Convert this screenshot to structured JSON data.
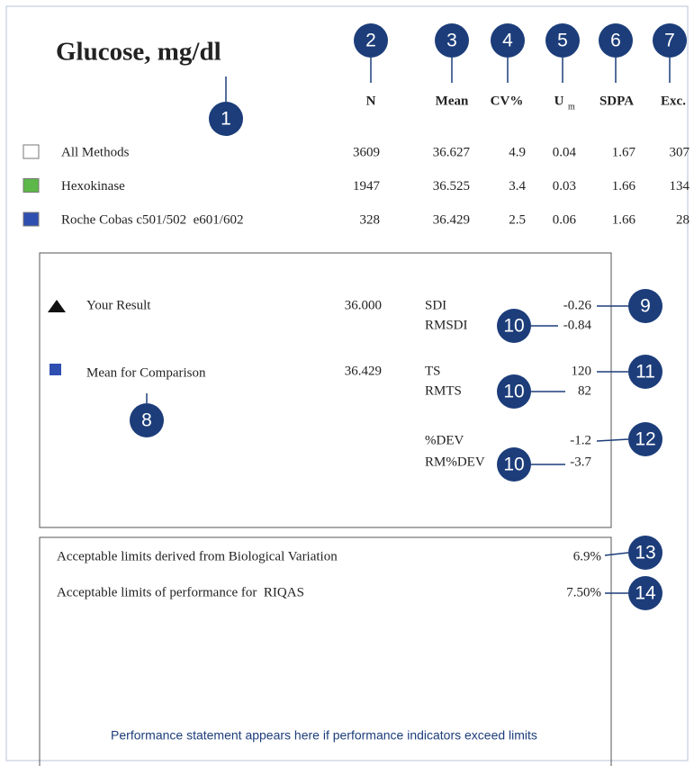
{
  "title": "Glucose, mg/dl",
  "columns": [
    "N",
    "Mean",
    "CV%",
    {
      "text": "U",
      "sub": "m"
    },
    "SDPA",
    "Exc."
  ],
  "rows": [
    {
      "name": "All Methods",
      "values": [
        "3609",
        "36.627",
        "4.9",
        "0.04",
        "1.67",
        "307"
      ]
    },
    {
      "name": "Hexokinase",
      "values": [
        "1947",
        "36.525",
        "3.4",
        "0.03",
        "1.66",
        "134"
      ]
    },
    {
      "name": "Roche Cobas c501/502  e601/602",
      "values": [
        "328",
        "36.429",
        "2.5",
        "0.06",
        "1.66",
        "28"
      ]
    }
  ],
  "result": {
    "your_result": {
      "label": "Your Result",
      "value": "36.000"
    },
    "comparison": {
      "label": "Mean for Comparison",
      "value": "36.429"
    },
    "indicators": [
      {
        "label": "SDI",
        "value": "-0.26"
      },
      {
        "label": "RMSDI",
        "value": "-0.84"
      },
      {
        "label": "TS",
        "value": "120"
      },
      {
        "label": "RMTS",
        "value": "82"
      },
      {
        "label": "%DEV",
        "value": "-1.2"
      },
      {
        "label": "RM%DEV",
        "value": "-3.7"
      }
    ]
  },
  "limits": [
    {
      "label": "Acceptable limits derived from Biological Variation",
      "value": "6.9%"
    },
    {
      "label": "Acceptable limits of performance for  RIQAS",
      "value": "7.50%"
    }
  ],
  "statement": "Performance statement appears here if performance indicators exceed limits",
  "callouts": [
    "1",
    "2",
    "3",
    "4",
    "5",
    "6",
    "7",
    "8",
    "9",
    "10",
    "10",
    "10",
    "11",
    "12",
    "13",
    "14"
  ]
}
